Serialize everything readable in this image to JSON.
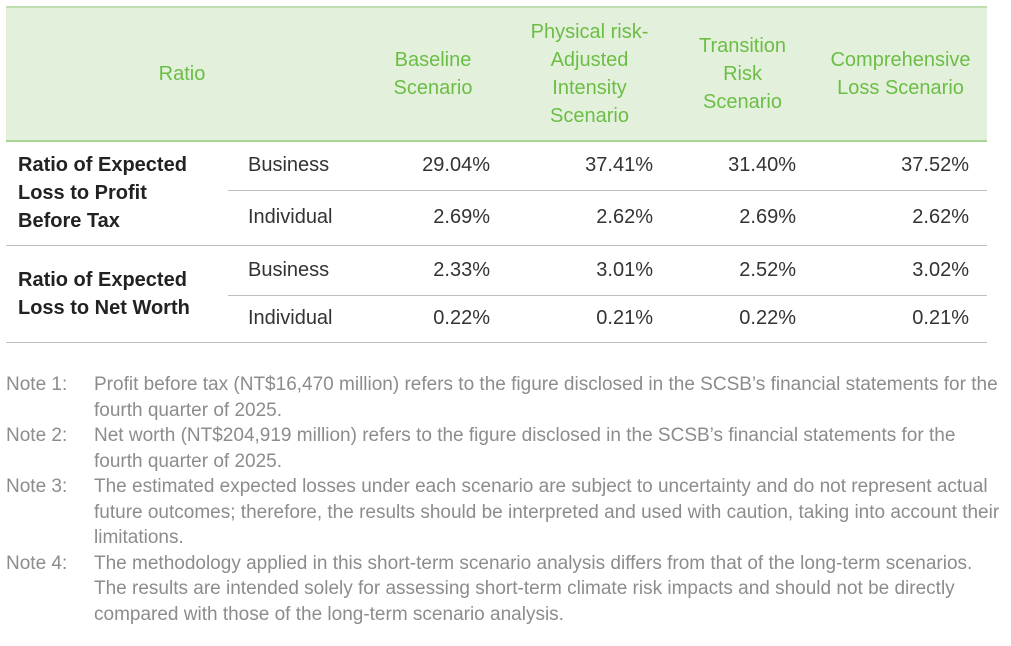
{
  "table": {
    "headers": {
      "ratio": "Ratio",
      "baseline": [
        "Baseline",
        "Scenario"
      ],
      "physical": [
        "Physical risk-",
        "Adjusted",
        "Intensity",
        "Scenario"
      ],
      "transition": [
        "Transition",
        "Risk",
        "Scenario"
      ],
      "comprehensive": [
        "Comprehensive",
        "Loss Scenario"
      ]
    },
    "groups": [
      {
        "label": [
          "Ratio of Expected",
          "Loss to Profit",
          "Before Tax"
        ],
        "rows": [
          {
            "type": "Business",
            "values": [
              "29.04%",
              "37.41%",
              "31.40%",
              "37.52%"
            ]
          },
          {
            "type": "Individual",
            "values": [
              "2.69%",
              "2.62%",
              "2.69%",
              "2.62%"
            ]
          }
        ]
      },
      {
        "label": [
          "Ratio of Expected",
          "Loss to Net Worth"
        ],
        "rows": [
          {
            "type": "Business",
            "values": [
              "2.33%",
              "3.01%",
              "2.52%",
              "3.02%"
            ]
          },
          {
            "type": "Individual",
            "values": [
              "0.22%",
              "0.21%",
              "0.22%",
              "0.21%"
            ]
          }
        ]
      }
    ]
  },
  "notes": [
    {
      "label": "Note 1:",
      "text": "Profit before tax (NT$16,470 million) refers to the figure disclosed in the SCSB’s financial statements for the fourth quarter of 2025."
    },
    {
      "label": "Note 2:",
      "text": "Net worth (NT$204,919 million) refers to the figure disclosed in the SCSB’s financial statements for the fourth quarter of 2025."
    },
    {
      "label": "Note 3:",
      "text": "The estimated expected losses under each scenario are subject to uncertainty and do not represent actual future outcomes; therefore, the results should be interpreted and used with caution, taking into account their limitations."
    },
    {
      "label": "Note 4:",
      "text": "The methodology applied in this short-term scenario analysis differs from that of the long-term scenarios. The results are intended solely for assessing short-term climate risk impacts and should not be directly compared with those of the long-term scenario analysis."
    }
  ]
}
